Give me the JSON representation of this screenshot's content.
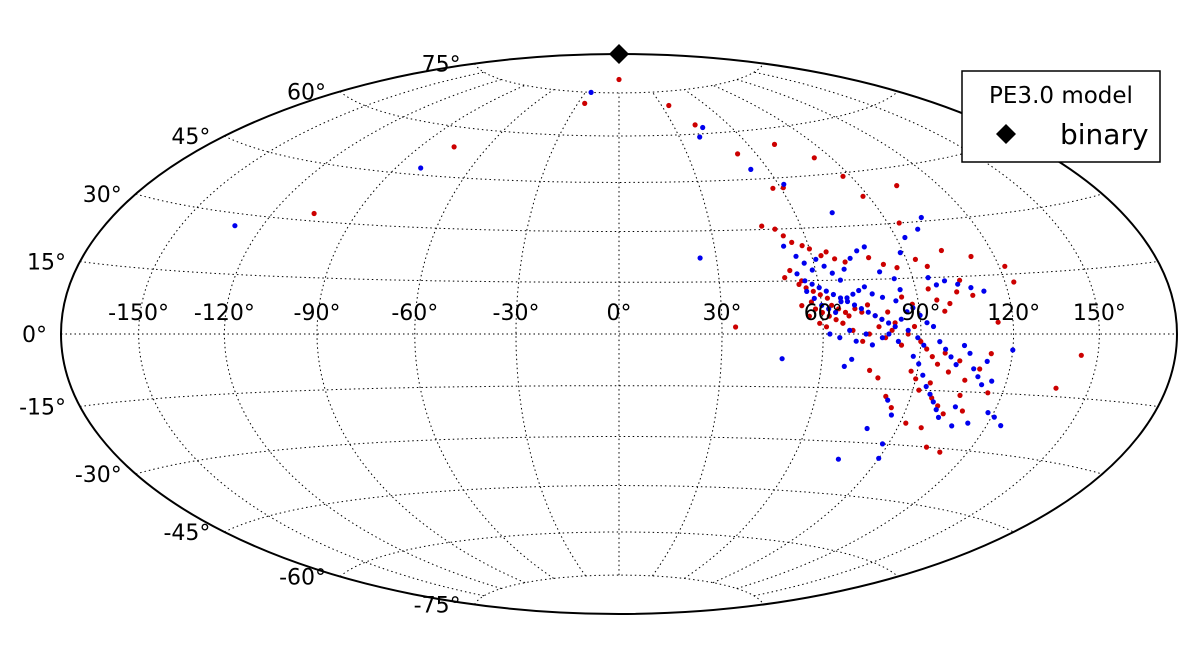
{
  "chart_data": {
    "type": "scatter",
    "projection": "hammer-aitoff",
    "grid": true,
    "title": "",
    "xlabel": "",
    "ylabel": "",
    "xlim": [
      -180,
      180
    ],
    "ylim": [
      -90,
      90
    ],
    "x_tick_labels": [
      "-150°",
      "-120°",
      "-90°",
      "-60°",
      "-30°",
      "0°",
      "30°",
      "60°",
      "90°",
      "120°",
      "150°"
    ],
    "y_tick_labels": [
      "75°",
      "60°",
      "45°",
      "30°",
      "15°",
      "0°",
      "-15°",
      "-30°",
      "-45°",
      "-60°",
      "-75°"
    ],
    "legend": {
      "title": "PE3.0 model",
      "placement": "top-right",
      "entries": [
        {
          "label": "binary",
          "marker": "diamond",
          "color": "#000000"
        }
      ]
    },
    "colors": {
      "red": "#cc0000",
      "blue": "#0000ee"
    },
    "series": [
      {
        "color": "red",
        "points": [
          [
            0,
            80
          ],
          [
            -25,
            71
          ],
          [
            -75,
            54
          ],
          [
            -105,
            32
          ],
          [
            35,
            70
          ],
          [
            42,
            63
          ],
          [
            52,
            53
          ],
          [
            57,
            42
          ],
          [
            61,
            42
          ],
          [
            72,
            55
          ],
          [
            83,
            50
          ],
          [
            87,
            44
          ],
          [
            88,
            38
          ],
          [
            94,
            30
          ],
          [
            104,
            40
          ],
          [
            47,
            31
          ],
          [
            51,
            30
          ],
          [
            53,
            28
          ],
          [
            55,
            26
          ],
          [
            58,
            25
          ],
          [
            60,
            24
          ],
          [
            63,
            22
          ],
          [
            65,
            23
          ],
          [
            67,
            21
          ],
          [
            70,
            20
          ],
          [
            78,
            21
          ],
          [
            82,
            19
          ],
          [
            86,
            18
          ],
          [
            93,
            20
          ],
          [
            96,
            18
          ],
          [
            103,
            22
          ],
          [
            112,
            20
          ],
          [
            122,
            17
          ],
          [
            123,
            13
          ],
          [
            50,
            16
          ],
          [
            52,
            18
          ],
          [
            54,
            14
          ],
          [
            56,
            13
          ],
          [
            58,
            12
          ],
          [
            60,
            11
          ],
          [
            62,
            10
          ],
          [
            63,
            8
          ],
          [
            65,
            7
          ],
          [
            67,
            6
          ],
          [
            68,
            5
          ],
          [
            70,
            7
          ],
          [
            72,
            6
          ],
          [
            74,
            8
          ],
          [
            76,
            5
          ],
          [
            78,
            4
          ],
          [
            80,
            6
          ],
          [
            82,
            3
          ],
          [
            85,
            10
          ],
          [
            88,
            8
          ],
          [
            58,
            7
          ],
          [
            60,
            6
          ],
          [
            62,
            5
          ],
          [
            64,
            4
          ],
          [
            66,
            3
          ],
          [
            56,
            5
          ],
          [
            54,
            8
          ],
          [
            57,
            9
          ],
          [
            59,
            3
          ],
          [
            61,
            2
          ],
          [
            94,
            12
          ],
          [
            96,
            9
          ],
          [
            98,
            6
          ],
          [
            100,
            8
          ],
          [
            103,
            11
          ],
          [
            105,
            14
          ],
          [
            108,
            10
          ],
          [
            115,
            3
          ],
          [
            34,
            2
          ],
          [
            55,
            15
          ],
          [
            90,
            -2
          ],
          [
            92,
            -4
          ],
          [
            94,
            -6
          ],
          [
            96,
            -8
          ],
          [
            98,
            -5
          ],
          [
            100,
            -10
          ],
          [
            103,
            -7
          ],
          [
            106,
            -12
          ],
          [
            110,
            -9
          ],
          [
            113,
            -5
          ],
          [
            88,
            -10
          ],
          [
            90,
            -12
          ],
          [
            92,
            -15
          ],
          [
            95,
            -13
          ],
          [
            97,
            -17
          ],
          [
            100,
            -19
          ],
          [
            103,
            -21
          ],
          [
            106,
            -16
          ],
          [
            109,
            -20
          ],
          [
            115,
            -15
          ],
          [
            92,
            -24
          ],
          [
            98,
            -25
          ],
          [
            104,
            -30
          ],
          [
            110,
            -31
          ],
          [
            85,
            -20
          ],
          [
            78,
            -12
          ],
          [
            75,
            -10
          ],
          [
            82,
            -17
          ],
          [
            144,
            -5
          ],
          [
            138,
            -13
          ],
          [
            66,
            3
          ],
          [
            69,
            1
          ],
          [
            72,
            -2
          ],
          [
            74,
            0
          ],
          [
            77,
            2
          ],
          [
            79,
            -1
          ],
          [
            81,
            1
          ],
          [
            84,
            -3
          ],
          [
            86,
            0
          ],
          [
            88,
            2
          ]
        ]
      },
      {
        "color": "blue",
        "points": [
          [
            -25,
            75
          ],
          [
            -80,
            47
          ],
          [
            -130,
            27
          ],
          [
            25,
            22
          ],
          [
            40,
            59
          ],
          [
            45,
            62
          ],
          [
            53,
            48
          ],
          [
            62,
            43
          ],
          [
            73,
            34
          ],
          [
            52,
            25
          ],
          [
            55,
            22
          ],
          [
            57,
            20
          ],
          [
            59,
            18
          ],
          [
            61,
            21
          ],
          [
            63,
            19
          ],
          [
            65,
            17
          ],
          [
            67,
            15
          ],
          [
            69,
            18
          ],
          [
            72,
            21
          ],
          [
            75,
            23
          ],
          [
            78,
            24
          ],
          [
            80,
            17
          ],
          [
            84,
            15
          ],
          [
            89,
            22
          ],
          [
            93,
            26
          ],
          [
            99,
            28
          ],
          [
            103,
            31
          ],
          [
            54,
            17
          ],
          [
            56,
            15
          ],
          [
            58,
            14
          ],
          [
            60,
            13
          ],
          [
            62,
            12
          ],
          [
            64,
            11
          ],
          [
            66,
            10
          ],
          [
            68,
            9
          ],
          [
            70,
            8
          ],
          [
            72,
            7
          ],
          [
            74,
            6
          ],
          [
            76,
            5
          ],
          [
            78,
            4
          ],
          [
            80,
            3
          ],
          [
            82,
            2
          ],
          [
            84,
            4
          ],
          [
            86,
            6
          ],
          [
            88,
            7
          ],
          [
            90,
            5
          ],
          [
            92,
            3
          ],
          [
            94,
            2
          ],
          [
            60,
            8
          ],
          [
            62,
            7
          ],
          [
            64,
            6
          ],
          [
            66,
            9
          ],
          [
            68,
            10
          ],
          [
            70,
            11
          ],
          [
            72,
            12
          ],
          [
            74,
            13
          ],
          [
            58,
            10
          ],
          [
            56,
            12
          ],
          [
            100,
            14
          ],
          [
            104,
            13
          ],
          [
            108,
            12
          ],
          [
            112,
            11
          ],
          [
            95,
            15
          ],
          [
            97,
            13
          ],
          [
            85,
            12
          ],
          [
            83,
            9
          ],
          [
            79,
            10
          ],
          [
            76,
            11
          ],
          [
            96,
            -2
          ],
          [
            98,
            -4
          ],
          [
            100,
            -6
          ],
          [
            102,
            -8
          ],
          [
            104,
            -3
          ],
          [
            106,
            -5
          ],
          [
            108,
            -9
          ],
          [
            110,
            -11
          ],
          [
            112,
            -7
          ],
          [
            115,
            -12
          ],
          [
            88,
            -6
          ],
          [
            90,
            -8
          ],
          [
            92,
            -11
          ],
          [
            94,
            -14
          ],
          [
            96,
            -16
          ],
          [
            98,
            -18
          ],
          [
            100,
            -20
          ],
          [
            102,
            -22
          ],
          [
            106,
            -19
          ],
          [
            108,
            -24
          ],
          [
            118,
            -20
          ],
          [
            121,
            -21
          ],
          [
            125,
            -23
          ],
          [
            113,
            -23
          ],
          [
            120,
            -4
          ],
          [
            112,
            -13
          ],
          [
            86,
            -22
          ],
          [
            83,
            -18
          ],
          [
            80,
            -26
          ],
          [
            88,
            -30
          ],
          [
            90,
            -34
          ],
          [
            76,
            -35
          ],
          [
            69,
            -7
          ],
          [
            67,
            -9
          ],
          [
            48,
            -7
          ],
          [
            62,
            0
          ],
          [
            65,
            -1
          ],
          [
            68,
            1
          ],
          [
            70,
            -2
          ],
          [
            73,
            0
          ],
          [
            75,
            -3
          ],
          [
            78,
            -1
          ],
          [
            80,
            0
          ],
          [
            83,
            -2
          ],
          [
            86,
            1
          ],
          [
            89,
            -1
          ],
          [
            91,
            -3
          ]
        ]
      }
    ]
  }
}
